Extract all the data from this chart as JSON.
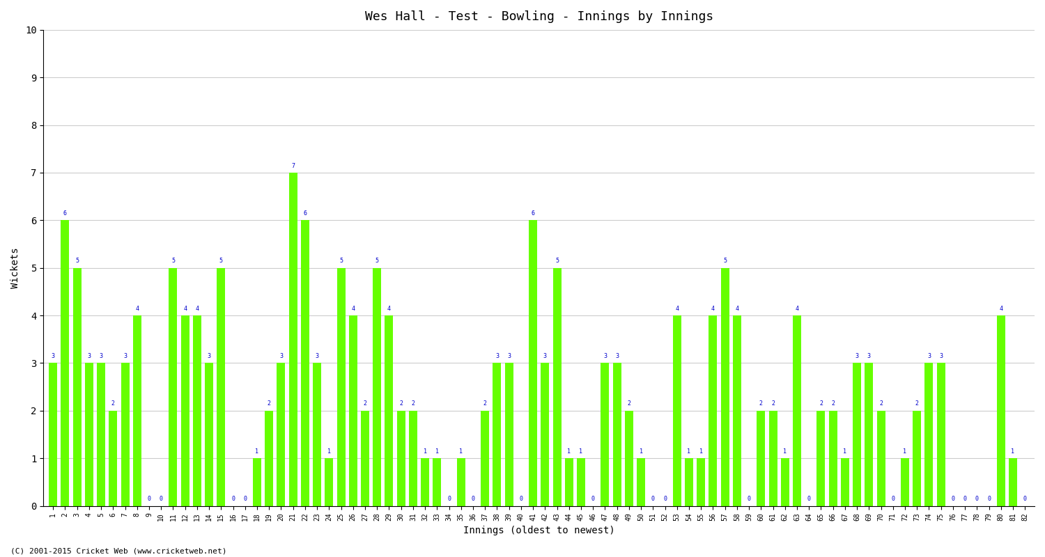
{
  "title": "Wes Hall - Test - Bowling - Innings by Innings",
  "xlabel": "Innings (oldest to newest)",
  "ylabel": "Wickets",
  "bar_color": "#66ff00",
  "label_color": "#0000cc",
  "background_color": "#ffffff",
  "grid_color": "#cccccc",
  "ylim": [
    0,
    10
  ],
  "yticks": [
    0,
    1,
    2,
    3,
    4,
    5,
    6,
    7,
    8,
    9,
    10
  ],
  "footnote": "(C) 2001-2015 Cricket Web (www.cricketweb.net)",
  "innings_labels": [
    "1",
    "2",
    "3",
    "4",
    "5",
    "6",
    "7",
    "8",
    "9",
    "10",
    "11",
    "12",
    "13",
    "14",
    "15",
    "16",
    "17",
    "18",
    "19",
    "20",
    "21",
    "22",
    "23",
    "24",
    "25",
    "26",
    "27",
    "28",
    "29",
    "30",
    "31",
    "32",
    "33",
    "34",
    "35",
    "36",
    "37",
    "38",
    "39",
    "40",
    "41",
    "42",
    "43",
    "44",
    "45",
    "46",
    "47",
    "48",
    "49",
    "50",
    "51",
    "52",
    "53",
    "54",
    "55",
    "56",
    "57",
    "58",
    "59",
    "60",
    "61",
    "62",
    "63",
    "64",
    "65",
    "66",
    "67",
    "68",
    "69",
    "70",
    "71",
    "72",
    "73",
    "74",
    "75",
    "76",
    "77",
    "78",
    "79",
    "80",
    "81",
    "82"
  ],
  "wickets": [
    3,
    6,
    5,
    3,
    3,
    2,
    3,
    4,
    0,
    0,
    5,
    4,
    4,
    3,
    5,
    0,
    0,
    1,
    2,
    3,
    7,
    6,
    3,
    1,
    5,
    4,
    2,
    5,
    4,
    2,
    2,
    1,
    1,
    0,
    1,
    0,
    2,
    3,
    3,
    0,
    6,
    3,
    5,
    1,
    1,
    0,
    3,
    3,
    2,
    1,
    0,
    0,
    4,
    1,
    1,
    4,
    5,
    4,
    0,
    2,
    2,
    1,
    4,
    0,
    2,
    2,
    1,
    3,
    3,
    2,
    0,
    1,
    2,
    3,
    3,
    0,
    0,
    0,
    0,
    4,
    1,
    0
  ]
}
